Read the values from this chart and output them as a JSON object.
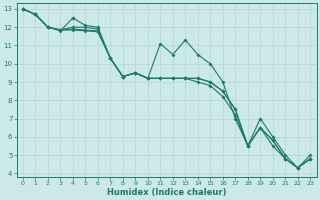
{
  "xlabel": "Humidex (Indice chaleur)",
  "xlim": [
    -0.5,
    23.5
  ],
  "ylim": [
    3.8,
    13.3
  ],
  "xticks": [
    0,
    1,
    2,
    3,
    4,
    5,
    6,
    7,
    8,
    9,
    10,
    11,
    12,
    13,
    14,
    15,
    16,
    17,
    18,
    19,
    20,
    21,
    22,
    23
  ],
  "yticks": [
    4,
    5,
    6,
    7,
    8,
    9,
    10,
    11,
    12,
    13
  ],
  "bg_color": "#cce8e8",
  "grid_color": "#b5d5d5",
  "line_color": "#1a7a6e",
  "line1_x": [
    0,
    1,
    2,
    3,
    4,
    4,
    5,
    6,
    7,
    8,
    9,
    10,
    11,
    12,
    13,
    14,
    15,
    16,
    17,
    18,
    19,
    20,
    21,
    22,
    23
  ],
  "line1_y": [
    13.0,
    12.7,
    12.0,
    11.8,
    12.5,
    12.5,
    12.1,
    12.0,
    10.3,
    9.3,
    9.5,
    9.2,
    11.1,
    10.5,
    11.3,
    10.5,
    10.0,
    9.0,
    7.0,
    5.5,
    7.0,
    6.0,
    5.0,
    4.3,
    5.0
  ],
  "line2_x": [
    0,
    1,
    2,
    3,
    4,
    5,
    6,
    7,
    8,
    9,
    10,
    11,
    12,
    13,
    14,
    15,
    16,
    17,
    18,
    19,
    20,
    21,
    22,
    23
  ],
  "line2_y": [
    13.0,
    12.7,
    12.0,
    11.85,
    12.0,
    12.0,
    11.9,
    10.3,
    9.3,
    9.5,
    9.2,
    9.2,
    9.2,
    9.2,
    9.2,
    9.0,
    8.5,
    7.5,
    5.5,
    6.5,
    5.8,
    4.8,
    4.3,
    4.8
  ],
  "line3_x": [
    0,
    1,
    2,
    3,
    4,
    5,
    6,
    7,
    8,
    9,
    10,
    11,
    12,
    13,
    14,
    15,
    16,
    17,
    18,
    19,
    20,
    21,
    22,
    23
  ],
  "line3_y": [
    13.0,
    12.7,
    12.0,
    11.85,
    11.9,
    11.85,
    11.8,
    10.3,
    9.3,
    9.5,
    9.2,
    9.2,
    9.2,
    9.2,
    9.2,
    9.0,
    8.5,
    7.5,
    5.5,
    6.5,
    5.8,
    4.8,
    4.3,
    4.8
  ],
  "line4_x": [
    0,
    1,
    2,
    3,
    4,
    5,
    6,
    7,
    8,
    9,
    10,
    11,
    12,
    13,
    14,
    15,
    16,
    17,
    18,
    19,
    20,
    21,
    22,
    23
  ],
  "line4_y": [
    13.0,
    12.7,
    12.0,
    11.85,
    11.85,
    11.8,
    11.75,
    10.3,
    9.3,
    9.5,
    9.2,
    9.2,
    9.2,
    9.2,
    9.0,
    8.8,
    8.2,
    7.2,
    5.5,
    6.5,
    5.5,
    4.8,
    4.3,
    4.8
  ]
}
